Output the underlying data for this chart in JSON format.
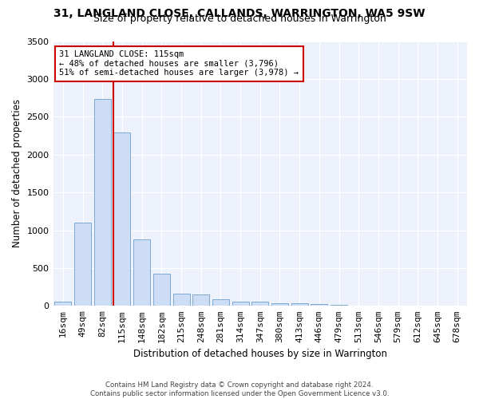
{
  "title": "31, LANGLAND CLOSE, CALLANDS, WARRINGTON, WA5 9SW",
  "subtitle": "Size of property relative to detached houses in Warrington",
  "xlabel": "Distribution of detached houses by size in Warrington",
  "ylabel": "Number of detached properties",
  "categories": [
    "16sqm",
    "49sqm",
    "82sqm",
    "115sqm",
    "148sqm",
    "182sqm",
    "215sqm",
    "248sqm",
    "281sqm",
    "314sqm",
    "347sqm",
    "380sqm",
    "413sqm",
    "446sqm",
    "479sqm",
    "513sqm",
    "546sqm",
    "579sqm",
    "612sqm",
    "645sqm",
    "678sqm"
  ],
  "values": [
    55,
    1100,
    2730,
    2290,
    875,
    420,
    165,
    155,
    90,
    60,
    55,
    30,
    30,
    20,
    10,
    0,
    0,
    0,
    0,
    0,
    0
  ],
  "bar_color": "#ccddf5",
  "bar_edge_color": "#7aaad4",
  "vline_color": "#cc0000",
  "vline_x_index": 3,
  "annotation_text": "31 LANGLAND CLOSE: 115sqm\n← 48% of detached houses are smaller (3,796)\n51% of semi-detached houses are larger (3,978) →",
  "annotation_box_color": "#cc0000",
  "ylim": [
    0,
    3500
  ],
  "yticks": [
    0,
    500,
    1000,
    1500,
    2000,
    2500,
    3000,
    3500
  ],
  "bg_color": "#edf1fb",
  "grid_color": "#ffffff",
  "footer_line1": "Contains HM Land Registry data © Crown copyright and database right 2024.",
  "footer_line2": "Contains public sector information licensed under the Open Government Licence v3.0.",
  "title_fontsize": 10,
  "subtitle_fontsize": 9,
  "xlabel_fontsize": 8.5,
  "ylabel_fontsize": 8.5,
  "tick_fontsize": 8,
  "annot_fontsize": 7.5
}
